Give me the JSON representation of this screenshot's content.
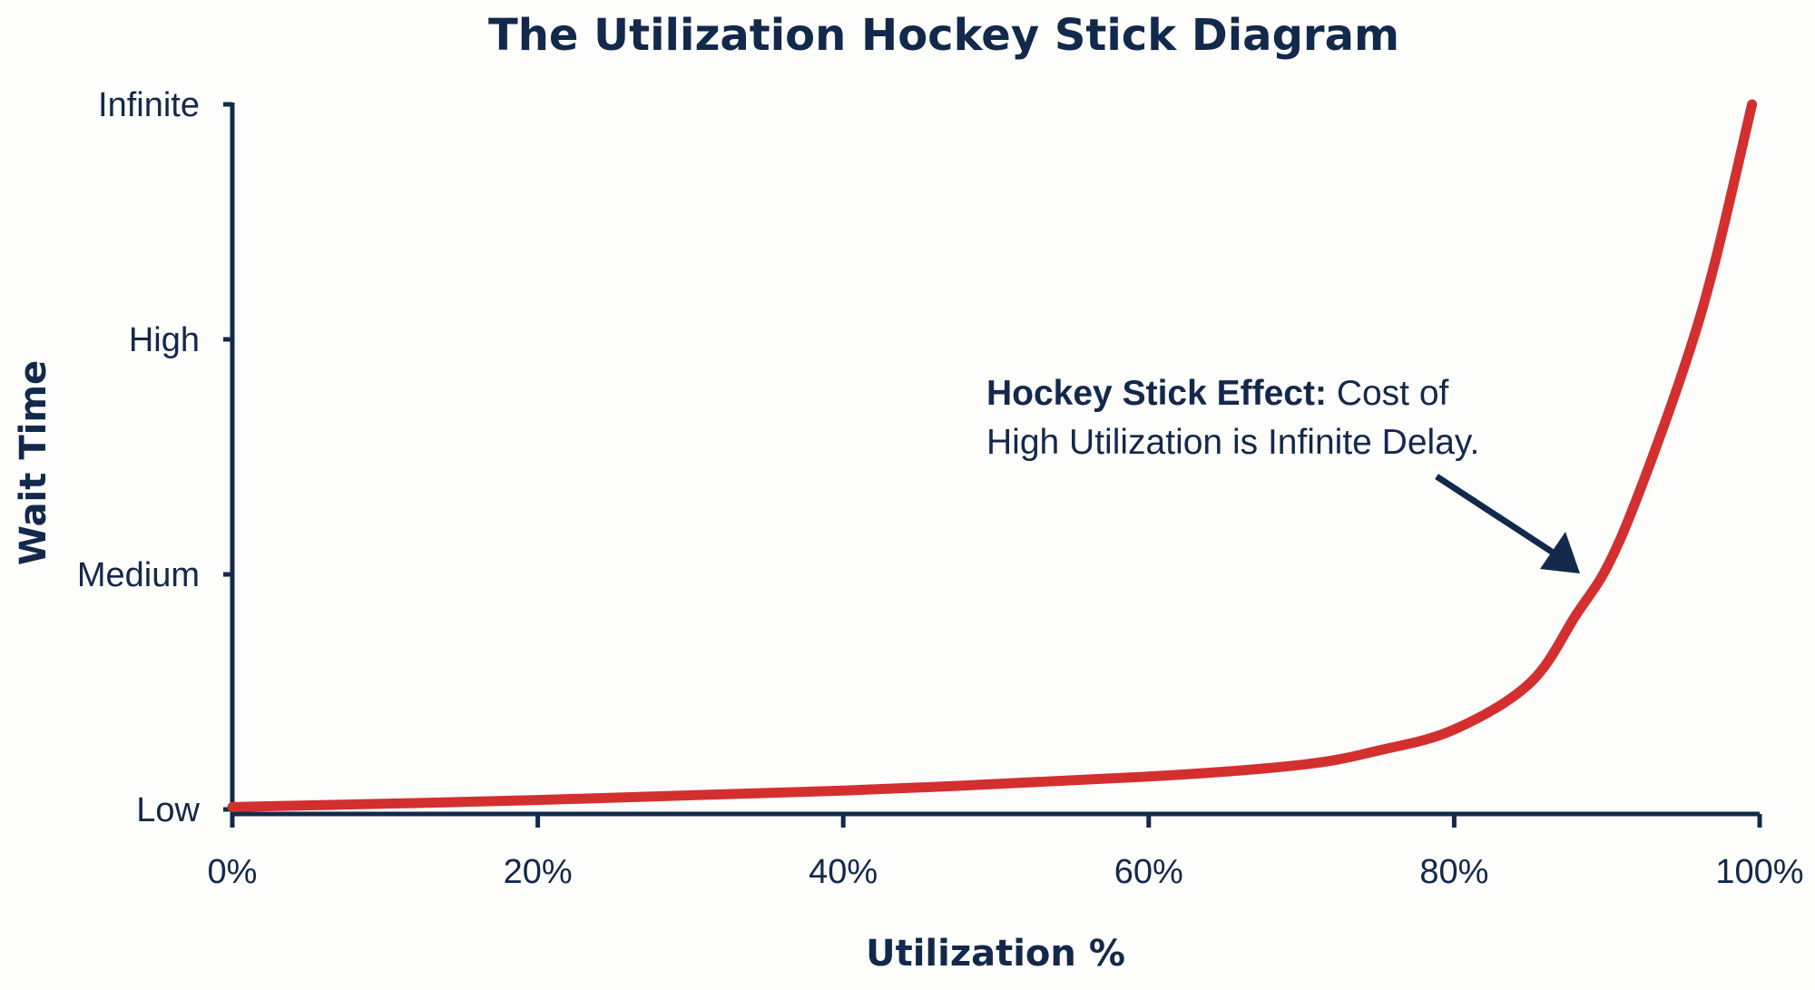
{
  "chart_data": {
    "type": "line",
    "title": "The Utilization Hockey Stick Diagram",
    "xlabel": "Utilization %",
    "ylabel": "Wait Time",
    "xlim": [
      0,
      100
    ],
    "ylim": [
      0,
      3
    ],
    "x_ticks": [
      0,
      20,
      40,
      60,
      80,
      100
    ],
    "x_tick_labels": [
      "0%",
      "20%",
      "40%",
      "60%",
      "80%",
      "100%"
    ],
    "y_ticks": [
      0,
      1,
      2,
      3
    ],
    "y_tick_labels": [
      "Low",
      "Medium",
      "High",
      "Infinite"
    ],
    "grid": false,
    "series": [
      {
        "x": [
          0,
          20,
          40,
          60,
          70,
          75,
          80,
          85,
          88,
          90,
          92,
          95,
          97,
          99.5
        ],
        "y": [
          0.01,
          0.04,
          0.08,
          0.14,
          0.19,
          0.25,
          0.34,
          0.54,
          0.83,
          1.03,
          1.33,
          1.87,
          2.31,
          3.0
        ],
        "color": "#d32f2f"
      }
    ],
    "annotation": {
      "bold": "Hockey Stick Effect:",
      "text_line1": " Cost of",
      "text_line2": "High Utilization is Infinite Delay.",
      "points_to": {
        "x": 89.5,
        "y": 1.0
      }
    },
    "axis_color": "#13294b"
  }
}
